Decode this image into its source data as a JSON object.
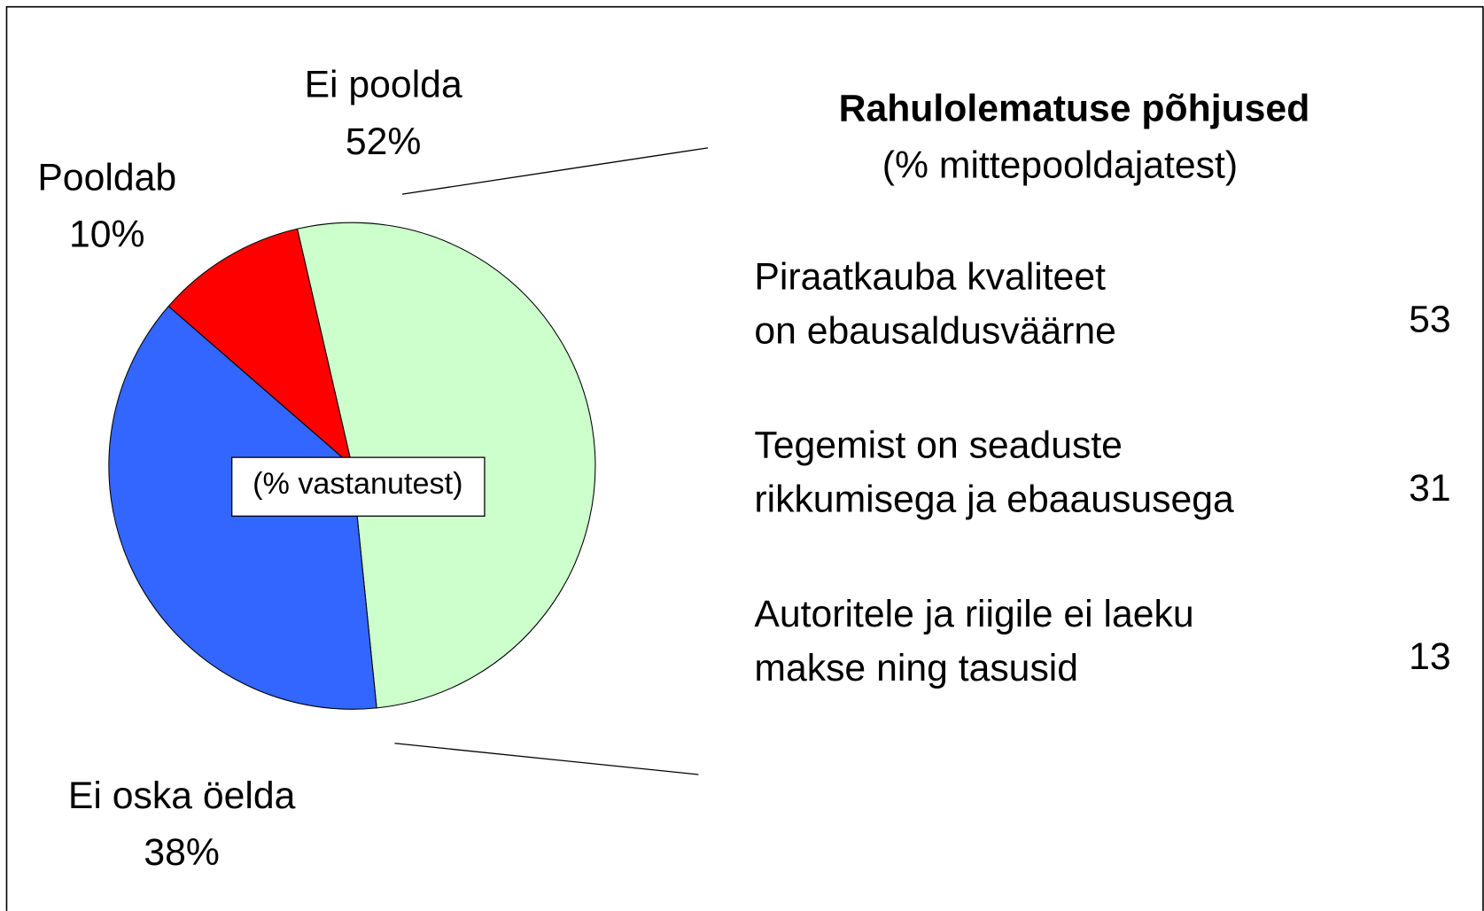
{
  "chart_data": {
    "type": "pie",
    "note": "(% vastanutest)",
    "categories": [
      "Pooldab",
      "Ei poolda",
      "Ei oska öelda"
    ],
    "values": [
      10,
      52,
      38
    ],
    "value_labels": [
      "10%",
      "52%",
      "38%"
    ],
    "colors": [
      "#ff0000",
      "#ccffcc",
      "#3366ff"
    ]
  },
  "breakdown": {
    "title": "Rahulolematuse põhjused",
    "subtitle": "(% mittepooldajatest)",
    "items": [
      {
        "lines": [
          "Piraatkauba kvaliteet",
          "on ebausaldusväärne"
        ],
        "value": 53
      },
      {
        "lines": [
          "Tegemist on seaduste",
          "rikkumisega ja ebaaususega"
        ],
        "value": 31
      },
      {
        "lines": [
          "Autoritele ja riigile ei laeku",
          "makse ning tasusid"
        ],
        "value": 13
      }
    ]
  }
}
